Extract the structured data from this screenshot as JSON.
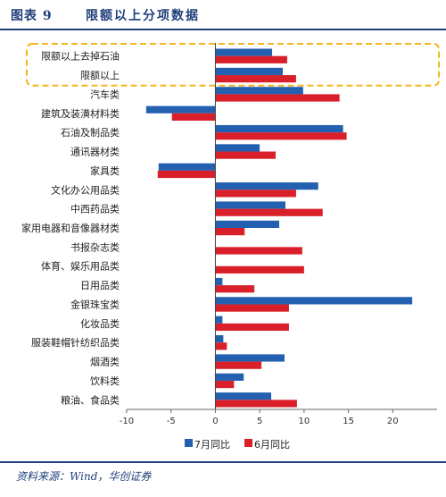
{
  "header": {
    "figure_no": "图表 9",
    "title": "限额以上分项数据"
  },
  "source": "资料来源：Wind，华创证券",
  "colors": {
    "series_jul": "#2460b0",
    "series_jun": "#d9202a",
    "highlight": "#f2b71a",
    "header": "#1f3f7a"
  },
  "chart_data": {
    "type": "bar",
    "orientation": "horizontal",
    "categories": [
      "限额以上去掉石油",
      "限额以上",
      "汽车类",
      "建筑及装潢材料类",
      "石油及制品类",
      "通讯器材类",
      "家具类",
      "文化办公用品类",
      "中西药品类",
      "家用电器和音像器材类",
      "书报杂志类",
      "体育、娱乐用品类",
      "日用品类",
      "金银珠宝类",
      "化妆品类",
      "服装鞋帽针纺织品类",
      "烟酒类",
      "饮料类",
      "粮油、食品类"
    ],
    "series": [
      {
        "name": "7月同比",
        "values": [
          6.4,
          7.6,
          9.9,
          -7.8,
          14.4,
          5.0,
          -6.4,
          11.6,
          7.9,
          7.2,
          null,
          null,
          0.8,
          22.2,
          0.8,
          0.9,
          7.8,
          3.2,
          6.3
        ]
      },
      {
        "name": "6月同比",
        "values": [
          8.1,
          9.1,
          14.0,
          -4.9,
          14.8,
          6.8,
          -6.5,
          9.1,
          12.1,
          3.3,
          9.8,
          10.0,
          4.4,
          8.3,
          8.3,
          1.3,
          5.2,
          2.1,
          9.2
        ]
      }
    ],
    "xlim": [
      -10,
      25
    ],
    "xticks": [
      -10,
      -5,
      0,
      5,
      10,
      15,
      20
    ],
    "legend_position": "bottom",
    "highlighted_categories": [
      "限额以上去掉石油",
      "限额以上"
    ]
  }
}
